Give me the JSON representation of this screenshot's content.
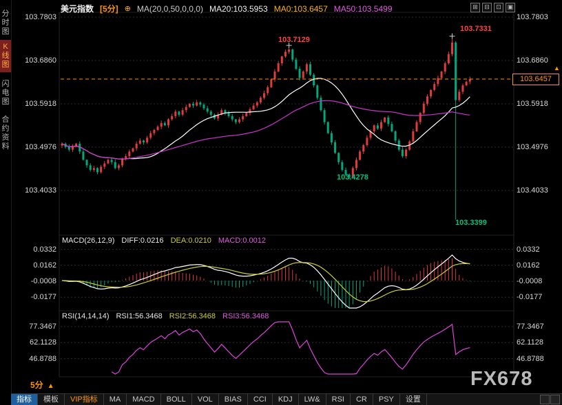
{
  "sidebar": {
    "items": [
      {
        "label": "分时图",
        "active": false
      },
      {
        "label": "K线图",
        "active": true
      },
      {
        "label": "闪电图",
        "active": false
      },
      {
        "label": "合约资料",
        "active": false
      }
    ]
  },
  "header": {
    "symbol": "美元指数",
    "period": "[5分]",
    "settings_icon": "⊕",
    "ma_settings": "MA(20,0,50,0,0,0)",
    "ma20": "MA20:103.5953",
    "ma0": "MA0:103.6457",
    "ma50": "MA50:103.5499"
  },
  "window_buttons": [
    "⊞",
    "⊟",
    "⊡",
    "▣"
  ],
  "main_chart": {
    "y_labels_left": [
      "103.7803",
      "103.6860",
      "103.5918",
      "103.4976",
      "103.4033"
    ],
    "y_labels_right": [
      "103.7803",
      "103.6860",
      "103.5918",
      "103.4976",
      "103.4033"
    ],
    "annotations": {
      "peak1": "103.7129",
      "peak2": "103.7331",
      "trough1": "103.4278",
      "trough2": "103.3399"
    },
    "last_price_label": "103.6457",
    "price_marker_arrow": "▲"
  },
  "macd_panel": {
    "title": "MACD(26,12,9)",
    "diff_label": "DIFF:0.0216",
    "dea_label": "DEA:0.0210",
    "macd_label": "MACD:0.0012",
    "y_labels": [
      "0.0332",
      "0.0162",
      "-0.0008",
      "-0.0177"
    ]
  },
  "rsi_panel": {
    "title": "RSI(14,14,14)",
    "rsi1_label": "RSI1:56.3468",
    "rsi2_label": "RSI2:56.3468",
    "rsi3_label": "RSI3:56.3468",
    "y_labels": [
      "77.3467",
      "62.1128",
      "46.8788"
    ]
  },
  "footer": {
    "period_label": "5分",
    "period_arrow": "▲",
    "watermark": "FX678"
  },
  "toolbar": {
    "items": [
      "指标",
      "模板",
      "VIP指标",
      "MA",
      "MACD",
      "BOLL",
      "VOL",
      "BIAS",
      "CCI",
      "KDJ",
      "LW&",
      "RSI",
      "CR",
      "PSY",
      "设置"
    ]
  },
  "colors": {
    "up": "#e03c3c",
    "down": "#00a87e",
    "ma20_line": "#ffffff",
    "ma50_line": "#cc33cc",
    "dea_line": "#cfcf33",
    "rsi_line": "#dd44dd",
    "accent_orange": "#ff9500",
    "grid": "#2d2d2d"
  },
  "chart_data": {
    "type": "candlestick",
    "symbol": "美元指数",
    "interval": "5分",
    "price_axis": [
      103.7803,
      103.686,
      103.5918,
      103.4976,
      103.4033
    ],
    "last_price": 103.6457,
    "key_points": {
      "peak1": 103.7129,
      "peak2": 103.7331,
      "trough1": 103.4278,
      "trough2": 103.3399
    },
    "closes": [
      103.505,
      103.498,
      103.492,
      103.5,
      103.505,
      103.488,
      103.47,
      103.458,
      103.448,
      103.452,
      103.443,
      103.455,
      103.462,
      103.47,
      103.465,
      103.452,
      103.458,
      103.472,
      103.478,
      103.488,
      103.495,
      103.505,
      103.512,
      103.508,
      103.518,
      103.528,
      103.535,
      103.542,
      103.55,
      103.545,
      103.558,
      103.565,
      103.575,
      103.568,
      103.578,
      103.585,
      103.592,
      103.588,
      103.595,
      103.59,
      103.582,
      103.575,
      103.568,
      103.56,
      103.568,
      103.578,
      103.572,
      103.565,
      103.558,
      103.552,
      103.558,
      103.565,
      103.572,
      103.58,
      103.588,
      103.595,
      103.605,
      103.615,
      103.628,
      103.645,
      103.662,
      103.68,
      103.695,
      103.705,
      103.71,
      103.688,
      103.668,
      103.648,
      103.662,
      103.678,
      103.655,
      103.632,
      103.605,
      103.578,
      103.552,
      103.528,
      103.508,
      103.485,
      103.465,
      103.448,
      103.438,
      103.432,
      103.452,
      103.47,
      103.488,
      103.502,
      103.518,
      103.532,
      103.545,
      103.538,
      103.552,
      103.562,
      103.548,
      103.532,
      103.512,
      103.492,
      103.478,
      103.492,
      103.51,
      103.532,
      103.552,
      103.572,
      103.592,
      103.608,
      103.622,
      103.635,
      103.648,
      103.662,
      103.68,
      103.7,
      103.725,
      103.6,
      103.618,
      103.632,
      103.64,
      103.6457
    ],
    "wick_overrides": {
      "64": {
        "high": 103.7129
      },
      "81": {
        "low": 103.4278
      },
      "110": {
        "high": 103.7331
      },
      "111": {
        "low": 103.3399
      }
    },
    "indicators": {
      "ma": {
        "ma20": 103.5953,
        "ma0": 103.6457,
        "ma50": 103.5499
      },
      "macd": {
        "params": [
          26,
          12,
          9
        ],
        "diff": 0.0216,
        "dea": 0.021,
        "macd": 0.0012,
        "axis": [
          0.0332,
          0.0162,
          -0.0008,
          -0.0177
        ]
      },
      "rsi": {
        "params": [
          14,
          14,
          14
        ],
        "rsi1": 56.3468,
        "rsi2": 56.3468,
        "rsi3": 56.3468,
        "axis": [
          77.3467,
          62.1128,
          46.8788
        ]
      }
    }
  }
}
